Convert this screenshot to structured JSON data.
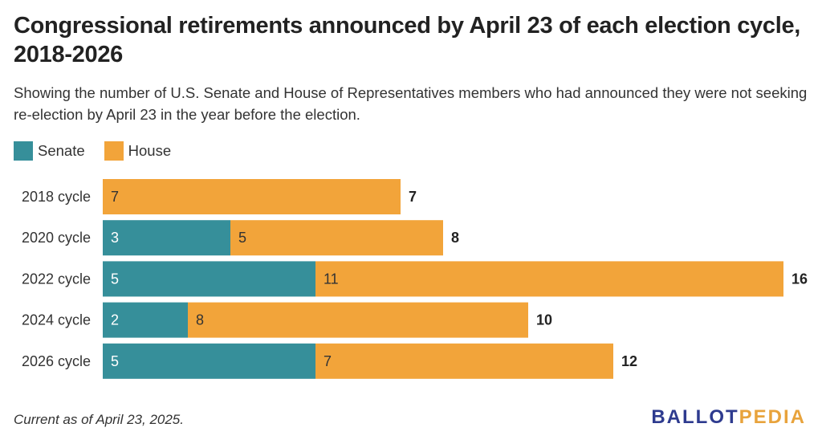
{
  "header": {
    "title": "Congressional retirements announced by April 23 of each election cycle, 2018-2026",
    "subtitle": "Showing the number of U.S. Senate and House of Representatives members who had announced they were not seeking re-election by April 23 in the year before the election."
  },
  "legend": {
    "items": [
      {
        "label": "Senate",
        "color": "#368f9a"
      },
      {
        "label": "House",
        "color": "#f2a43a"
      }
    ]
  },
  "chart_data": {
    "type": "bar",
    "orientation": "horizontal",
    "stacked": true,
    "categories": [
      "2018 cycle",
      "2020 cycle",
      "2022 cycle",
      "2024 cycle",
      "2026 cycle"
    ],
    "series": [
      {
        "name": "Senate",
        "color": "#368f9a",
        "values": [
          0,
          3,
          5,
          2,
          5
        ]
      },
      {
        "name": "House",
        "color": "#f2a43a",
        "values": [
          7,
          5,
          11,
          8,
          7
        ]
      }
    ],
    "totals": [
      7,
      8,
      16,
      10,
      12
    ],
    "xlim": [
      0,
      16
    ],
    "grid": false,
    "legend_position": "top-left"
  },
  "footer": {
    "note": "Current as of April 23, 2025.",
    "brand_part1": "BALLOT",
    "brand_part2": "PEDIA"
  }
}
